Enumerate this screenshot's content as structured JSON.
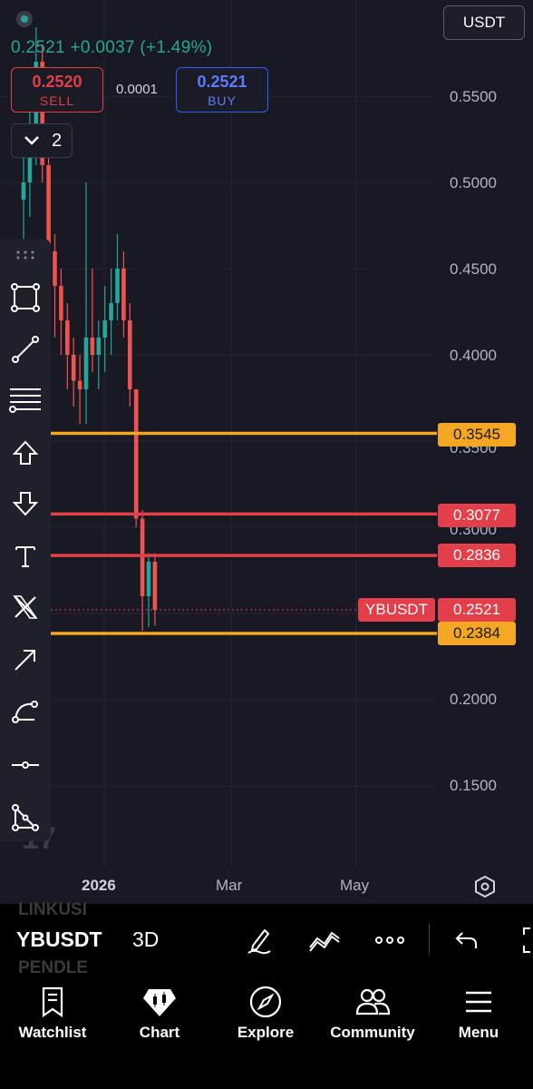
{
  "header": {
    "quote_currency": "USDT",
    "price_change": "0.2521 +0.0037 (+1.49%)",
    "sell": {
      "price": "0.2520",
      "label": "SELL"
    },
    "buy": {
      "price": "0.2521",
      "label": "BUY"
    },
    "spread": "0.0001",
    "collapsed_count": "2"
  },
  "price_axis": [
    "0.5500",
    "0.5000",
    "0.4500",
    "0.4000",
    "0.2000",
    "0.1500"
  ],
  "price_axis_partial": [
    "0.3500",
    "0.3000"
  ],
  "time_axis": [
    "2026",
    "Mar",
    "May"
  ],
  "horizontal_levels": [
    {
      "price": "0.3545",
      "color": "#f5a623"
    },
    {
      "price": "0.3077",
      "color": "#e23f4a"
    },
    {
      "price": "0.2836",
      "color": "#e23f4a"
    },
    {
      "price": "0.2384",
      "color": "#f5a623"
    }
  ],
  "current": {
    "ticker": "YBUSDT",
    "price": "0.2521",
    "color": "#e23f4a"
  },
  "colors": {
    "up": "#26a69a",
    "down": "#ef5350",
    "background": "#181922"
  },
  "chart_data": {
    "type": "candlestick",
    "ylim": [
      0.1,
      0.58
    ],
    "candles": [
      {
        "o": 0.49,
        "h": 0.53,
        "l": 0.46,
        "c": 0.5
      },
      {
        "o": 0.5,
        "h": 0.56,
        "l": 0.48,
        "c": 0.53
      },
      {
        "o": 0.53,
        "h": 0.59,
        "l": 0.51,
        "c": 0.57
      },
      {
        "o": 0.57,
        "h": 0.58,
        "l": 0.5,
        "c": 0.51
      },
      {
        "o": 0.51,
        "h": 0.52,
        "l": 0.44,
        "c": 0.46
      },
      {
        "o": 0.46,
        "h": 0.47,
        "l": 0.41,
        "c": 0.44
      },
      {
        "o": 0.44,
        "h": 0.45,
        "l": 0.4,
        "c": 0.42
      },
      {
        "o": 0.42,
        "h": 0.43,
        "l": 0.38,
        "c": 0.4
      },
      {
        "o": 0.4,
        "h": 0.41,
        "l": 0.37,
        "c": 0.385
      },
      {
        "o": 0.385,
        "h": 0.4,
        "l": 0.36,
        "c": 0.38
      },
      {
        "o": 0.38,
        "h": 0.5,
        "l": 0.36,
        "c": 0.41
      },
      {
        "o": 0.41,
        "h": 0.45,
        "l": 0.39,
        "c": 0.4
      },
      {
        "o": 0.4,
        "h": 0.42,
        "l": 0.38,
        "c": 0.41
      },
      {
        "o": 0.41,
        "h": 0.44,
        "l": 0.39,
        "c": 0.42
      },
      {
        "o": 0.42,
        "h": 0.45,
        "l": 0.4,
        "c": 0.43
      },
      {
        "o": 0.43,
        "h": 0.47,
        "l": 0.42,
        "c": 0.45
      },
      {
        "o": 0.45,
        "h": 0.46,
        "l": 0.41,
        "c": 0.42
      },
      {
        "o": 0.42,
        "h": 0.43,
        "l": 0.37,
        "c": 0.38
      },
      {
        "o": 0.38,
        "h": 0.38,
        "l": 0.3,
        "c": 0.305
      },
      {
        "o": 0.305,
        "h": 0.31,
        "l": 0.24,
        "c": 0.26
      },
      {
        "o": 0.26,
        "h": 0.285,
        "l": 0.242,
        "c": 0.28
      },
      {
        "o": 0.28,
        "h": 0.285,
        "l": 0.243,
        "c": 0.2521
      }
    ]
  },
  "bottom_bar": {
    "symbol": "YBUSDT",
    "symbol_above": "LINKUSI",
    "symbol_below": "PENDLE",
    "interval": "3D",
    "icons": [
      "draw-pen-icon",
      "indicators-icon",
      "more-icon",
      "undo-icon",
      "fullscreen-icon"
    ]
  },
  "nav": [
    {
      "label": "Watchlist",
      "icon": "bookmark-icon"
    },
    {
      "label": "Chart",
      "icon": "chart-icon"
    },
    {
      "label": "Explore",
      "icon": "compass-icon"
    },
    {
      "label": "Community",
      "icon": "people-icon"
    },
    {
      "label": "Menu",
      "icon": "hamburger-icon"
    }
  ]
}
